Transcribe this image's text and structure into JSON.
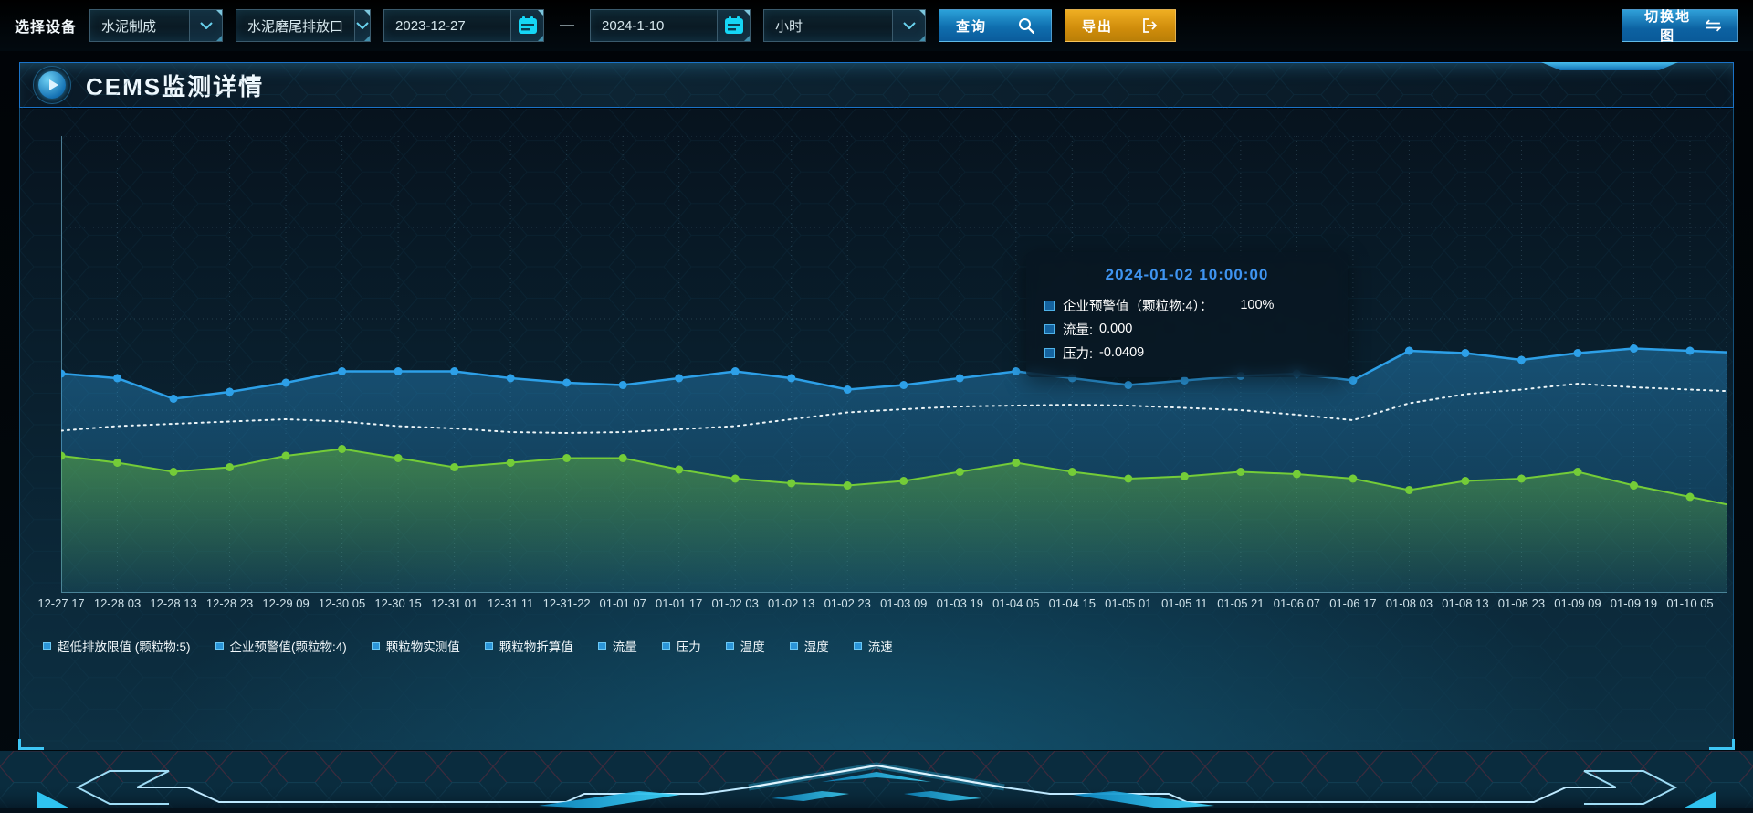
{
  "toolbar": {
    "device_label": "选择设备",
    "selects": [
      {
        "value": "水泥制成"
      },
      {
        "value": "水泥磨尾排放口"
      }
    ],
    "date_start": "2023-12-27",
    "date_separator": "—",
    "date_end": "2024-1-10",
    "interval_select": {
      "value": "小时"
    },
    "query_button": "查询",
    "export_button": "导出",
    "switch_map_button": "切换地图"
  },
  "panel": {
    "title": "CEMS监测详情"
  },
  "tooltip": {
    "title": "2024-01-02 10:00:00",
    "title_color": "#3f94f0",
    "items": [
      {
        "label": "企业预警值（颗粒物:4）：",
        "value": "100%",
        "wide_gap": true
      },
      {
        "label": "流量:",
        "value": "0.000",
        "wide_gap": false
      },
      {
        "label": "压力:",
        "value": "-0.0409",
        "wide_gap": false
      }
    ]
  },
  "legend": {
    "items": [
      "超低排放限值 (颗粒物:5)",
      "企业预警值(颗粒物:4)",
      "颗粒物实测值",
      "颗粒物折算值",
      "流量",
      "压力",
      "温度",
      "湿度",
      "流速"
    ],
    "marker_color": "#2b95d8"
  },
  "chart_data": {
    "type": "line",
    "title": "",
    "xlabel": "",
    "ylabel": "",
    "ylim": [
      0,
      100
    ],
    "grid": true,
    "legend_position": "bottom",
    "categories": [
      "12-27 17",
      "12-28 03",
      "12-28 13",
      "12-28 23",
      "12-29 09",
      "12-30 05",
      "12-30 15",
      "12-31 01",
      "12-31 11",
      "12-31-22",
      "01-01 07",
      "01-01 17",
      "01-02 03",
      "01-02 13",
      "01-02 23",
      "01-03 09",
      "01-03 19",
      "01-04 05",
      "01-04 15",
      "01-05 01",
      "01-05 11",
      "01-05 21",
      "01-06 07",
      "01-06 17",
      "01-08 03",
      "01-08 13",
      "01-08 23",
      "01-09 09",
      "01-09 19",
      "01-10 05"
    ],
    "series": [
      {
        "name": "企业预警值(颗粒物:4)",
        "color": "#2da0e8",
        "style": "solid",
        "width": 2.5,
        "markers": true,
        "area": "blue",
        "values": [
          48,
          47,
          42.5,
          44,
          46,
          48.5,
          48.5,
          48.5,
          47,
          46,
          45.5,
          47,
          48.5,
          47,
          44.5,
          45.5,
          47,
          48.5,
          47,
          45.5,
          46.5,
          47.5,
          48,
          46.5,
          53,
          52.5,
          51,
          52.5,
          53.5,
          53
        ]
      },
      {
        "name": "超低排放限值(颗粒物:5)",
        "color": "#ecf5f8",
        "style": "dotted",
        "width": 2,
        "markers": false,
        "area": null,
        "values": [
          35.5,
          36.5,
          37,
          37.5,
          38,
          37.5,
          36.5,
          36,
          35.2,
          35,
          35.2,
          35.8,
          36.5,
          38,
          39.5,
          40.2,
          40.8,
          41,
          41.2,
          41,
          40.5,
          40,
          39,
          37.8,
          41.5,
          43.5,
          44.5,
          45.8,
          45,
          44.5
        ]
      },
      {
        "name": "颗粒物实测值",
        "color": "#74cc38",
        "style": "solid",
        "width": 2,
        "markers": true,
        "area": "green",
        "values": [
          30,
          28.5,
          26.5,
          27.5,
          30,
          31.5,
          29.5,
          27.5,
          28.5,
          29.5,
          29.5,
          27,
          25,
          24,
          23.5,
          24.5,
          26.5,
          28.5,
          26.5,
          25,
          25.5,
          26.5,
          26,
          25,
          22.5,
          24.5,
          25,
          26.5,
          23.5,
          21
        ]
      }
    ]
  }
}
